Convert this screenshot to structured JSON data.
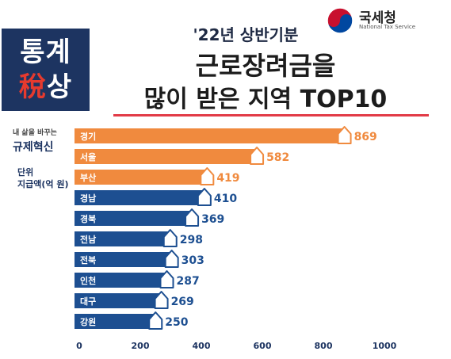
{
  "badge": {
    "line1": "통계",
    "line2_red": "稅",
    "line2": "상"
  },
  "brand": {
    "name": "국세청",
    "sub": "National Tax Service"
  },
  "title": {
    "top": "'22년 상반기분",
    "line1": "근로장려금을",
    "line2": "많이 받은 지역 TOP10"
  },
  "slogan": {
    "sub": "내 삶을 바꾸는",
    "main": "규제혁신"
  },
  "unit": {
    "label": "단위",
    "value": "지급액(억 원)"
  },
  "colors": {
    "orange": "#f08a3e",
    "navy": "#1d4f91",
    "badge": "#1d3461",
    "accent": "#e23b47"
  },
  "chart_data": {
    "type": "bar",
    "orientation": "horizontal",
    "categories": [
      "경기",
      "서울",
      "부산",
      "경남",
      "경북",
      "전남",
      "전북",
      "인천",
      "대구",
      "강원"
    ],
    "values": [
      869,
      582,
      419,
      410,
      369,
      298,
      303,
      287,
      269,
      250
    ],
    "highlight_top": 3,
    "xlim": [
      0,
      1000
    ],
    "xticks": [
      0,
      200,
      400,
      600,
      800,
      1000
    ],
    "grid": false,
    "legend": "none"
  }
}
